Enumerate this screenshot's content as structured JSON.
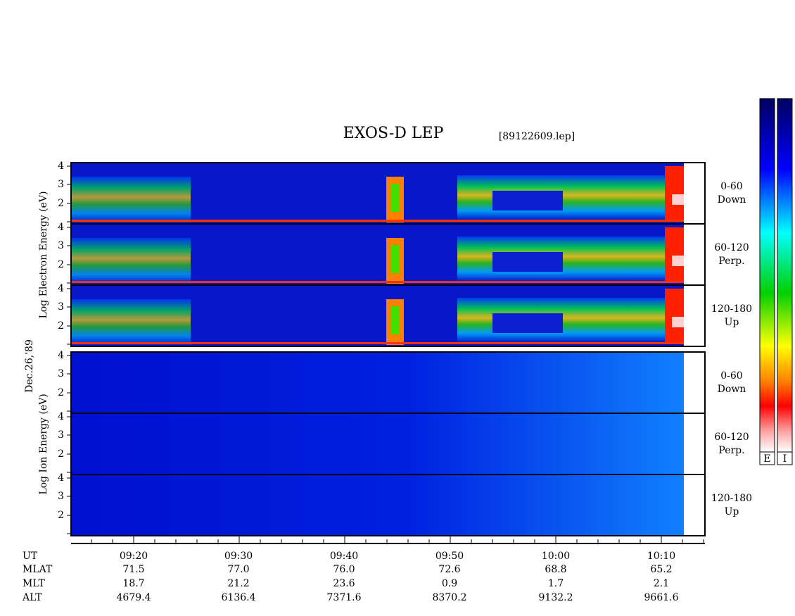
{
  "title": "EXOS-D LEP",
  "file": "[89122609.lep]",
  "date": "Dec.26,'89",
  "groups": [
    {
      "ylabel": "Log Electron Energy (eV)",
      "panels": [
        {
          "range": "0-60",
          "dir": "Down"
        },
        {
          "range": "60-120",
          "dir": "Perp."
        },
        {
          "range": "120-180",
          "dir": "Up"
        }
      ]
    },
    {
      "ylabel": "Log Ion Energy (eV)",
      "panels": [
        {
          "range": "0-60",
          "dir": "Down"
        },
        {
          "range": "60-120",
          "dir": "Perp."
        },
        {
          "range": "120-180",
          "dir": "Up"
        }
      ]
    }
  ],
  "yticks": [
    "4",
    "3",
    "2"
  ],
  "colorbars": [
    "E",
    "I"
  ],
  "ephemeris": {
    "rows": [
      {
        "label": "UT",
        "values": [
          "09:20",
          "09:30",
          "09:40",
          "09:50",
          "10:00",
          "10:10"
        ]
      },
      {
        "label": "MLAT",
        "values": [
          "71.5",
          "77.0",
          "76.0",
          "72.6",
          "68.8",
          "65.2"
        ]
      },
      {
        "label": "MLT",
        "values": [
          "18.7",
          "21.2",
          "23.6",
          "0.9",
          "1.7",
          "2.1"
        ]
      },
      {
        "label": "ALT",
        "values": [
          "4679.4",
          "6136.4",
          "7371.6",
          "8370.2",
          "9132.2",
          "9661.6"
        ]
      }
    ]
  }
}
